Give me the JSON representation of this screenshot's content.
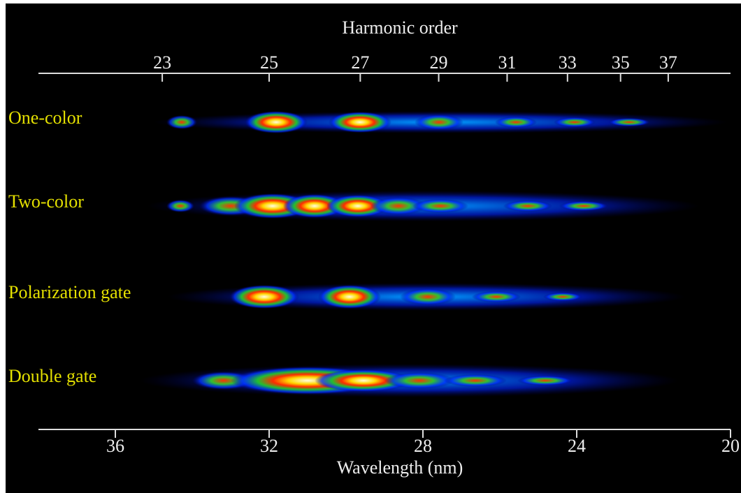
{
  "chart_data": {
    "type": "spectra",
    "xlabel": "Wavelength (nm)",
    "x2label": "Harmonic order",
    "xlim": [
      38,
      20
    ],
    "xticks": [
      36,
      32,
      28,
      24,
      20
    ],
    "x2ticks": [
      {
        "value": 34.78,
        "label": "23"
      },
      {
        "value": 32,
        "label": "25"
      },
      {
        "value": 29.63,
        "label": "27"
      },
      {
        "value": 27.59,
        "label": "29"
      },
      {
        "value": 25.81,
        "label": "31"
      },
      {
        "value": 24.24,
        "label": "33"
      },
      {
        "value": 22.86,
        "label": "35"
      },
      {
        "value": 21.62,
        "label": "37"
      }
    ],
    "rows": [
      "One-color",
      "Two-color",
      "Polarization gate",
      "Double gate"
    ]
  }
}
